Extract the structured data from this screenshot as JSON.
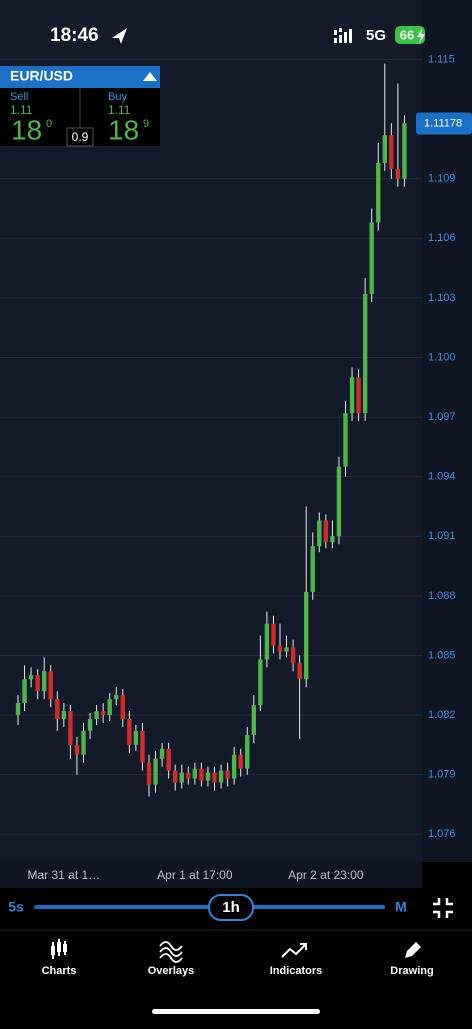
{
  "status_bar": {
    "time": "18:46",
    "network": "5G",
    "battery": "66"
  },
  "ticket": {
    "symbol": "EUR/USD",
    "sell": {
      "label": "Sell",
      "big_figure": "1.11",
      "pips": "18",
      "fraction": "0"
    },
    "spread": "0.9",
    "buy": {
      "label": "Buy",
      "big_figure": "1.11",
      "pips": "18",
      "fraction": "9"
    }
  },
  "chart_data": {
    "type": "candlestick",
    "categories": [
      null,
      null,
      null,
      null,
      null,
      null,
      null,
      "Mar 31 at 1…",
      null,
      null,
      null,
      null,
      null,
      null,
      null,
      null,
      null,
      null,
      null,
      null,
      null,
      null,
      null,
      null,
      null,
      null,
      null,
      "Apr 1 at 17:00",
      null,
      null,
      null,
      null,
      null,
      null,
      null,
      null,
      null,
      null,
      null,
      null,
      null,
      null,
      null,
      null,
      null,
      null,
      null,
      "Apr 2 at 23:00",
      null,
      null,
      null,
      null,
      null,
      null,
      null,
      null,
      null,
      null,
      null,
      null
    ],
    "open": [
      1.082,
      1.0826,
      1.0838,
      1.084,
      1.0832,
      1.0842,
      1.0828,
      1.0818,
      1.0822,
      1.0805,
      1.08,
      1.0812,
      1.0818,
      1.0822,
      1.082,
      1.0828,
      1.083,
      1.0818,
      1.0805,
      1.0812,
      1.0796,
      1.0785,
      1.0798,
      1.0803,
      1.0792,
      1.0786,
      1.0791,
      1.0788,
      1.0793,
      1.0787,
      1.0791,
      1.0786,
      1.0792,
      1.0788,
      1.08,
      1.0793,
      1.081,
      1.0825,
      1.0848,
      1.0866,
      1.0855,
      1.0852,
      1.0854,
      1.0846,
      1.0838,
      1.0882,
      1.0905,
      1.0918,
      1.0907,
      1.091,
      1.0945,
      1.0972,
      1.099,
      1.0972,
      1.1032,
      1.1068,
      1.1098,
      1.1112,
      1.1095,
      1.109
    ],
    "high": [
      1.083,
      1.0845,
      1.0844,
      1.0843,
      1.0849,
      1.0845,
      1.0832,
      1.0826,
      1.0825,
      1.0809,
      1.0816,
      1.0821,
      1.0825,
      1.0826,
      1.0831,
      1.0834,
      1.0833,
      1.0822,
      1.0815,
      1.0816,
      1.08,
      1.0802,
      1.0806,
      1.0806,
      1.0795,
      1.0795,
      1.0794,
      1.0796,
      1.0796,
      1.0794,
      1.0794,
      1.0795,
      1.0796,
      1.0804,
      1.0803,
      1.0814,
      1.083,
      1.086,
      1.0872,
      1.087,
      1.0866,
      1.086,
      1.0858,
      1.085,
      1.0925,
      1.0912,
      1.0922,
      1.0921,
      1.0918,
      1.095,
      1.0978,
      1.0995,
      1.0994,
      1.104,
      1.1075,
      1.1108,
      1.1148,
      1.1118,
      1.1138,
      1.1122
    ],
    "low": [
      1.0815,
      1.0822,
      1.0834,
      1.0828,
      1.0828,
      1.0824,
      1.0812,
      1.0814,
      1.0798,
      1.079,
      1.0796,
      1.0808,
      1.0815,
      1.0816,
      1.0817,
      1.0825,
      1.0814,
      1.0801,
      1.0802,
      1.0792,
      1.0779,
      1.0781,
      1.0794,
      1.0788,
      1.0782,
      1.0783,
      1.0785,
      1.0785,
      1.0784,
      1.0784,
      1.0782,
      1.0783,
      1.0784,
      1.0785,
      1.0789,
      1.079,
      1.0806,
      1.0822,
      1.0844,
      1.0851,
      1.0848,
      1.0849,
      1.0842,
      1.0808,
      1.0834,
      1.0878,
      1.0902,
      1.0904,
      1.0904,
      1.0906,
      1.094,
      1.0968,
      1.0968,
      1.0968,
      1.1028,
      1.1064,
      1.1094,
      1.109,
      1.1086,
      1.1086
    ],
    "close": [
      1.0826,
      1.0838,
      1.084,
      1.0832,
      1.0842,
      1.0828,
      1.0818,
      1.0822,
      1.0805,
      1.08,
      1.0812,
      1.0818,
      1.0822,
      1.082,
      1.0828,
      1.083,
      1.0818,
      1.0805,
      1.0812,
      1.0796,
      1.0785,
      1.0798,
      1.0803,
      1.0792,
      1.0786,
      1.0791,
      1.0788,
      1.0793,
      1.0787,
      1.0791,
      1.0786,
      1.0792,
      1.0788,
      1.08,
      1.0793,
      1.081,
      1.0825,
      1.0848,
      1.0866,
      1.0855,
      1.0852,
      1.0854,
      1.0846,
      1.0838,
      1.0882,
      1.0905,
      1.0918,
      1.0907,
      1.091,
      1.0945,
      1.0972,
      1.099,
      1.0972,
      1.1032,
      1.1068,
      1.1098,
      1.1112,
      1.1095,
      1.109,
      1.1118
    ],
    "up_color": "#4cb648",
    "down_color": "#d42a2a",
    "wick_color": "#e8e8e8",
    "ylim": [
      1.0746,
      1.118
    ],
    "yticks": [
      1.076,
      1.079,
      1.082,
      1.085,
      1.088,
      1.091,
      1.094,
      1.097,
      {
        "value": 1.1,
        "label": "1.100"
      },
      1.103,
      1.106,
      1.109,
      1.115
    ],
    "grid": true,
    "last_price": 1.11178
  },
  "timeframe": {
    "min": "5s",
    "current": "1h",
    "max": "M"
  },
  "nav": [
    "Charts",
    "Overlays",
    "Indicators",
    "Drawing"
  ]
}
